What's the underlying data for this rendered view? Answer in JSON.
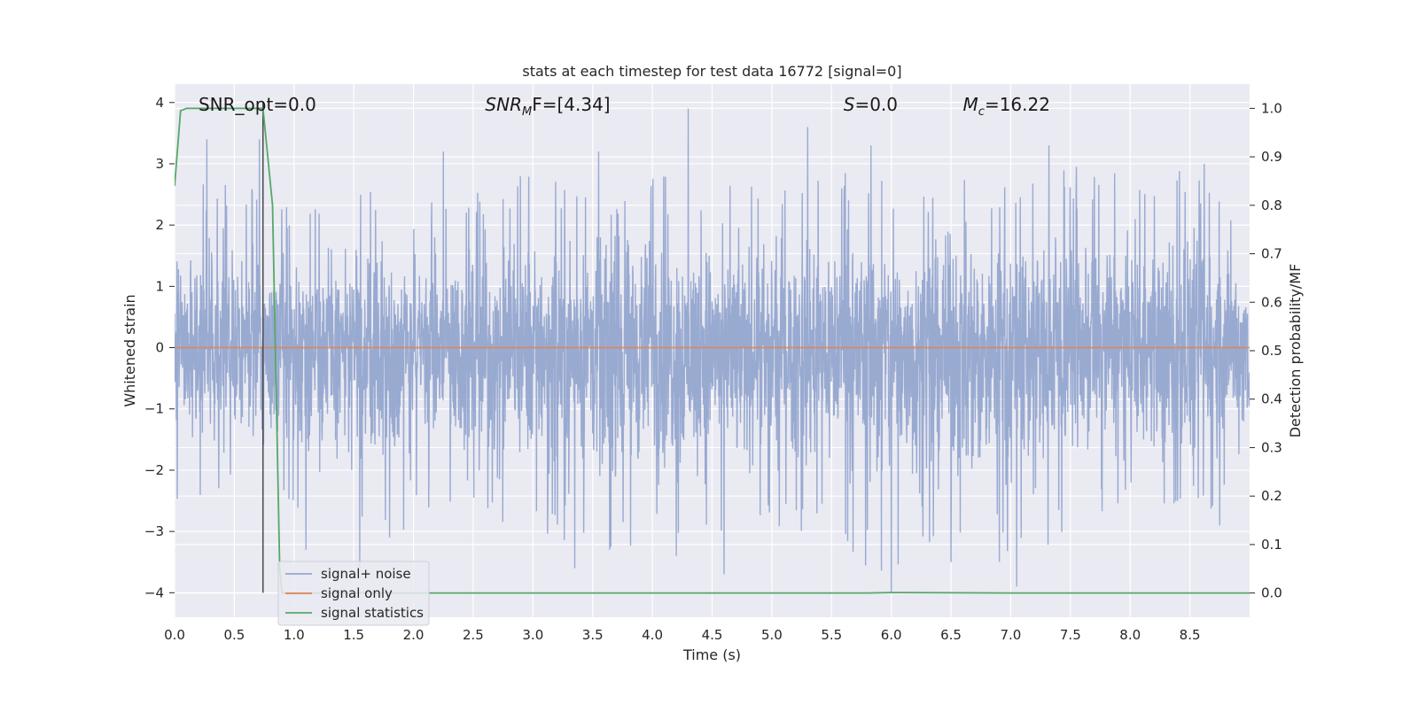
{
  "chart_data": {
    "type": "line",
    "title": "stats at each timestep for test data 16772 [signal=0]",
    "xlabel": "Time (s)",
    "ylabel": "Whitened strain",
    "y2label": "Detection probability/MF",
    "xlim": [
      0,
      9
    ],
    "ylim": [
      -4.4,
      4.3
    ],
    "y2lim": [
      -0.05,
      1.05
    ],
    "xticks": [
      0.0,
      0.5,
      1.0,
      1.5,
      2.0,
      2.5,
      3.0,
      3.5,
      4.0,
      4.5,
      5.0,
      5.5,
      6.0,
      6.5,
      7.0,
      7.5,
      8.0,
      8.5
    ],
    "xtick_labels": [
      "0.0",
      "0.5",
      "1.0",
      "1.5",
      "2.0",
      "2.5",
      "3.0",
      "3.5",
      "4.0",
      "4.5",
      "5.0",
      "5.5",
      "6.0",
      "6.5",
      "7.0",
      "7.5",
      "8.0",
      "8.5"
    ],
    "yticks": [
      4,
      3,
      2,
      1,
      0,
      -1,
      -2,
      -3,
      -4
    ],
    "ytick_labels": [
      "4",
      "3",
      "2",
      "1",
      "0",
      "−1",
      "−2",
      "−3",
      "−4"
    ],
    "y2ticks": [
      1.0,
      0.9,
      0.8,
      0.7,
      0.6,
      0.5,
      0.4,
      0.3,
      0.2,
      0.1,
      0.0
    ],
    "y2tick_labels": [
      "1.0",
      "0.9",
      "0.8",
      "0.7",
      "0.6",
      "0.5",
      "0.4",
      "0.3",
      "0.2",
      "0.1",
      "0.0"
    ],
    "grid": true,
    "legend_position": "lower-left",
    "vertical_marker_x": 0.74,
    "vertical_marker_range": [
      -4,
      4
    ],
    "series": [
      {
        "name": "signal+ noise",
        "color": "#95a7cf",
        "axis": "left",
        "description_envelope": {
          "x": [
            0.0,
            0.5,
            1.0,
            1.5,
            2.0,
            2.5,
            3.0,
            3.5,
            4.0,
            4.5,
            5.0,
            5.5,
            6.0,
            6.5,
            7.0,
            7.5,
            8.0,
            8.5,
            9.0
          ],
          "upper": [
            2.5,
            2.9,
            2.3,
            2.6,
            2.4,
            2.5,
            2.9,
            2.6,
            2.9,
            2.7,
            2.6,
            3.1,
            2.7,
            2.8,
            2.6,
            3.0,
            2.8,
            2.9,
            2.4
          ],
          "lower": [
            -2.5,
            -2.3,
            -2.6,
            -3.3,
            -3.0,
            -3.0,
            -3.0,
            -3.4,
            -3.3,
            -3.2,
            -3.0,
            -3.0,
            -4.0,
            -3.4,
            -3.8,
            -3.0,
            -2.8,
            -2.8,
            -2.4
          ]
        },
        "peaks": [
          [
            0.27,
            3.4
          ],
          [
            0.71,
            3.4
          ],
          [
            2.25,
            3.2
          ],
          [
            3.55,
            3.2
          ],
          [
            4.3,
            3.9
          ],
          [
            5.3,
            3.6
          ],
          [
            5.83,
            3.3
          ],
          [
            7.32,
            3.3
          ],
          [
            8.62,
            3.0
          ]
        ],
        "troughs": [
          [
            1.1,
            -3.3
          ],
          [
            1.55,
            -3.6
          ],
          [
            3.35,
            -3.6
          ],
          [
            4.2,
            -3.4
          ],
          [
            4.6,
            -3.7
          ],
          [
            6.0,
            -4.0
          ],
          [
            6.5,
            -3.5
          ],
          [
            7.05,
            -3.9
          ],
          [
            8.75,
            -2.9
          ]
        ]
      },
      {
        "name": "signal only",
        "color": "#dd8452",
        "axis": "left",
        "x": [
          0,
          9
        ],
        "y": [
          0,
          0
        ]
      },
      {
        "name": "signal statistics",
        "color": "#55a868",
        "axis": "right",
        "x": [
          0.0,
          0.05,
          0.1,
          0.2,
          0.4,
          0.6,
          0.7,
          0.74,
          0.82,
          0.88,
          0.9,
          1.0,
          2.0,
          4.0,
          5.8,
          6.0,
          7.0,
          9.0
        ],
        "y": [
          0.84,
          0.995,
          1.0,
          1.0,
          1.0,
          1.0,
          1.0,
          1.0,
          0.8,
          0.05,
          0.0,
          0.0,
          0.0,
          0.0,
          0.0,
          0.001,
          0.0,
          0.0
        ]
      }
    ],
    "annotations": [
      {
        "text": "SNR_opt=0.0",
        "x": 0.2,
        "y": 3.95
      },
      {
        "text_main": "SNR",
        "text_sub": "M",
        "text_after": "F=[4.34]",
        "x": 2.6,
        "y": 3.95
      },
      {
        "text_main": "S",
        "text_after": "=0.0",
        "x": 5.6,
        "y": 3.95
      },
      {
        "text_main": "M",
        "text_sub": "c",
        "text_after": "=16.22",
        "x": 6.6,
        "y": 3.95
      }
    ]
  }
}
